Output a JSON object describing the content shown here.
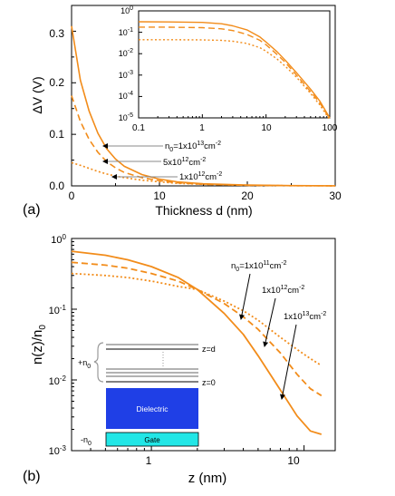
{
  "accent_color": "#f28c1a",
  "panel_a": {
    "label": "(a)",
    "chart_data": {
      "type": "line",
      "xlabel": "Thickness d (nm)",
      "ylabel": "ΔV (V)",
      "xlim": [
        0,
        30
      ],
      "ylim": [
        0,
        0.35
      ],
      "x_ticks": [
        "0",
        "10",
        "20",
        "30"
      ],
      "y_ticks": [
        "0.0",
        "0.1",
        "0.2",
        "0.3"
      ],
      "annotations": [
        "n0=1x10^13cm^-2",
        "5x10^12cm^-2",
        "1x10^12cm^-2"
      ],
      "series": [
        {
          "style": "solid",
          "x": [
            0,
            1,
            2,
            3,
            4,
            5,
            6,
            8,
            10,
            12,
            15,
            20,
            25,
            30
          ],
          "y": [
            0.31,
            0.205,
            0.145,
            0.102,
            0.072,
            0.052,
            0.038,
            0.022,
            0.013,
            0.008,
            0.004,
            0.0015,
            0.0006,
            0.0002
          ]
        },
        {
          "style": "dashed",
          "x": [
            0,
            1,
            2,
            3,
            4,
            5,
            6,
            8,
            10,
            12,
            15,
            20,
            25,
            30
          ],
          "y": [
            0.175,
            0.125,
            0.09,
            0.065,
            0.047,
            0.035,
            0.026,
            0.016,
            0.01,
            0.006,
            0.003,
            0.001,
            0.0004,
            0.0001
          ]
        },
        {
          "style": "dotted",
          "x": [
            0,
            1,
            2,
            3,
            4,
            5,
            6,
            8,
            10,
            12,
            15,
            20,
            25,
            30
          ],
          "y": [
            0.045,
            0.04,
            0.034,
            0.028,
            0.023,
            0.019,
            0.016,
            0.011,
            0.008,
            0.005,
            0.003,
            0.001,
            0.0004,
            0.0001
          ]
        }
      ],
      "inset": {
        "type": "line",
        "xscale": "log",
        "yscale": "log",
        "xlim": [
          0.1,
          100
        ],
        "ylim": [
          1e-05,
          1
        ],
        "x_ticks": [
          "0.1",
          "1",
          "10",
          "100"
        ],
        "y_ticks": [
          "10^-5",
          "10^-4",
          "10^-3",
          "10^-2",
          "10^-1",
          "10^0"
        ],
        "series": [
          {
            "style": "solid",
            "x": [
              0.1,
              0.3,
              1,
              2,
              3,
              5,
              8,
              10,
              15,
              20,
              30,
              50,
              70,
              100
            ],
            "y": [
              0.31,
              0.305,
              0.29,
              0.25,
              0.2,
              0.13,
              0.06,
              0.035,
              0.012,
              0.005,
              0.0013,
              0.00022,
              6e-05,
              1e-05
            ]
          },
          {
            "style": "dashed",
            "x": [
              0.1,
              0.3,
              1,
              2,
              3,
              5,
              8,
              10,
              15,
              20,
              30,
              50,
              70,
              100
            ],
            "y": [
              0.175,
              0.172,
              0.165,
              0.145,
              0.12,
              0.08,
              0.042,
              0.026,
              0.009,
              0.004,
              0.001,
              0.00017,
              5e-05,
              9e-06
            ]
          },
          {
            "style": "dotted",
            "x": [
              0.1,
              0.3,
              1,
              2,
              3,
              5,
              8,
              10,
              15,
              20,
              30,
              50,
              70,
              100
            ],
            "y": [
              0.045,
              0.045,
              0.044,
              0.042,
              0.038,
              0.03,
              0.019,
              0.013,
              0.0055,
              0.0026,
              0.0008,
              0.00014,
              4e-05,
              8e-06
            ]
          }
        ]
      }
    }
  },
  "panel_b": {
    "label": "(b)",
    "chart_data": {
      "type": "line",
      "xscale": "log",
      "yscale": "log",
      "xlabel": "z (nm)",
      "ylabel": "n(z)/n0",
      "xlim": [
        0.3,
        16
      ],
      "ylim": [
        0.001,
        1
      ],
      "x_ticks": [
        "1",
        "10"
      ],
      "y_ticks": [
        "10^-3",
        "10^-2",
        "10^-1",
        "10^0"
      ],
      "annotations": [
        "n0=1x10^11cm^-2",
        "1x10^12cm^-2",
        "1x10^13cm^-2"
      ],
      "series": [
        {
          "style": "solid",
          "x": [
            0.3,
            0.5,
            0.7,
            1,
            1.5,
            2,
            3,
            4,
            5,
            7,
            9,
            11,
            13
          ],
          "y": [
            0.66,
            0.58,
            0.5,
            0.4,
            0.28,
            0.19,
            0.087,
            0.044,
            0.022,
            0.0072,
            0.0031,
            0.0019,
            0.0017
          ]
        },
        {
          "style": "dashed",
          "x": [
            0.3,
            0.5,
            0.7,
            1,
            1.5,
            2,
            3,
            4,
            5,
            7,
            9,
            11,
            13
          ],
          "y": [
            0.46,
            0.42,
            0.38,
            0.32,
            0.25,
            0.19,
            0.12,
            0.078,
            0.052,
            0.024,
            0.012,
            0.0075,
            0.006
          ]
        },
        {
          "style": "dotted",
          "x": [
            0.3,
            0.5,
            0.7,
            1,
            1.5,
            2,
            3,
            4,
            5,
            7,
            9,
            11,
            13
          ],
          "y": [
            0.32,
            0.3,
            0.28,
            0.25,
            0.21,
            0.19,
            0.13,
            0.095,
            0.07,
            0.04,
            0.027,
            0.02,
            0.016
          ]
        }
      ]
    },
    "schematic": {
      "top_label": "z=d",
      "bottom_label": "z=0",
      "plus_label": "+n0",
      "minus_label": "-n0",
      "dielectric_label": "Dielectric",
      "gate_label": "Gate",
      "dielectric_color": "#1f3fe6",
      "gate_color": "#22e6e6"
    }
  }
}
